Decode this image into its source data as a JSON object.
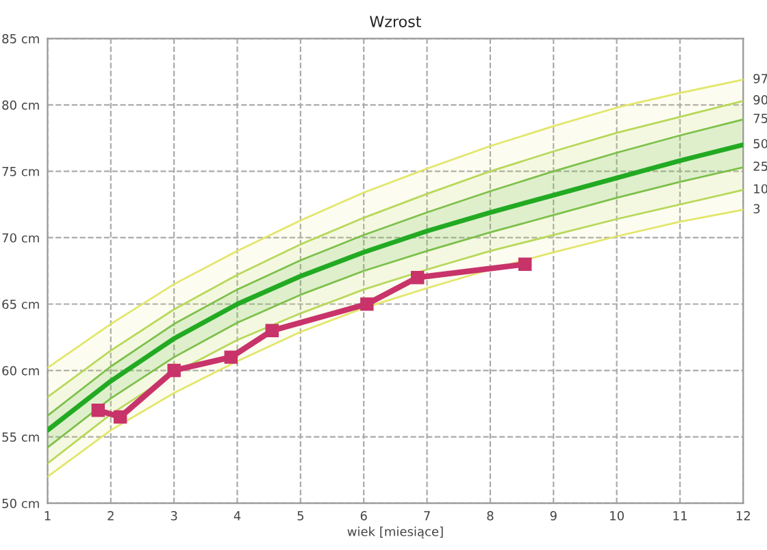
{
  "chart_data": {
    "type": "line",
    "title": "Wzrost",
    "xlabel": "wiek [miesiące]",
    "x": [
      1,
      2,
      3,
      4,
      5,
      6,
      7,
      8,
      9,
      10,
      11,
      12
    ],
    "xlim": [
      1,
      12
    ],
    "xticks": [
      1,
      2,
      3,
      4,
      5,
      6,
      7,
      8,
      9,
      10,
      11,
      12
    ],
    "ylim": [
      50,
      85
    ],
    "yticks": [
      {
        "value": 50,
        "label": "50 cm"
      },
      {
        "value": 55,
        "label": "55 cm"
      },
      {
        "value": 60,
        "label": "60 cm"
      },
      {
        "value": 65,
        "label": "65 cm"
      },
      {
        "value": 70,
        "label": "70 cm"
      },
      {
        "value": 75,
        "label": "75 cm"
      },
      {
        "value": 80,
        "label": "80 cm"
      },
      {
        "value": 85,
        "label": "85 cm"
      }
    ],
    "grid": true,
    "legend": false,
    "marker": "none",
    "line_style": "solid",
    "series": [
      {
        "name": "97",
        "color": "#e2e66a",
        "values": [
          60.2,
          63.5,
          66.5,
          69.0,
          71.3,
          73.4,
          75.2,
          76.9,
          78.4,
          79.8,
          80.9,
          81.9
        ],
        "lower": [
          52.0,
          55.5,
          58.3,
          60.7,
          62.9,
          64.7,
          66.2,
          67.6,
          68.9,
          70.1,
          71.2,
          72.1
        ],
        "upper": [
          60.2,
          63.5,
          66.5,
          69.0,
          71.3,
          73.4,
          75.2,
          76.9,
          78.4,
          79.8,
          80.9,
          81.9
        ]
      },
      {
        "name": "90",
        "color": "#b8d85a",
        "values": [
          58.0,
          61.5,
          64.6,
          67.2,
          69.5,
          71.5,
          73.3,
          75.0,
          76.5,
          77.9,
          79.1,
          80.3
        ],
        "lower": [
          53.0,
          56.7,
          59.8,
          62.3,
          64.3,
          66.1,
          67.6,
          69.0,
          70.2,
          71.4,
          72.5,
          73.6
        ],
        "upper": [
          58.0,
          61.5,
          64.6,
          67.2,
          69.5,
          71.5,
          73.3,
          75.0,
          76.5,
          77.9,
          79.1,
          80.3
        ]
      },
      {
        "name": "75",
        "color": "#7cc04a",
        "values": [
          56.6,
          60.3,
          63.5,
          66.1,
          68.3,
          70.2,
          71.9,
          73.5,
          75.0,
          76.4,
          77.7,
          78.9
        ]
      },
      {
        "name": "50",
        "color": "#22aa22",
        "values": [
          55.5,
          59.2,
          62.4,
          65.0,
          67.1,
          68.9,
          70.5,
          71.9,
          73.2,
          74.5,
          75.8,
          77.0
        ],
        "lower": [
          54.2,
          57.9,
          61.0,
          63.6,
          65.7,
          67.5,
          69.0,
          70.4,
          71.7,
          73.0,
          74.2,
          75.3
        ],
        "upper": [
          56.6,
          60.3,
          63.5,
          66.1,
          68.3,
          70.2,
          71.9,
          73.5,
          75.0,
          76.4,
          77.7,
          78.9
        ]
      },
      {
        "name": "25",
        "color": "#7cc04a",
        "values": [
          54.2,
          57.9,
          61.0,
          63.6,
          65.7,
          67.5,
          69.0,
          70.4,
          71.7,
          73.0,
          74.2,
          75.3
        ]
      },
      {
        "name": "10",
        "color": "#b8d85a",
        "values": [
          53.0,
          56.7,
          59.8,
          62.3,
          64.3,
          66.1,
          67.6,
          69.0,
          70.2,
          71.4,
          72.5,
          73.6
        ]
      },
      {
        "name": "3",
        "color": "#e2e66a",
        "values": [
          52.0,
          55.5,
          58.3,
          60.7,
          62.9,
          64.7,
          66.2,
          67.6,
          68.9,
          70.1,
          71.2,
          72.1
        ]
      },
      {
        "color": "#c8336a",
        "marker": "square",
        "x": [
          1.8,
          2.15,
          3.0,
          3.9,
          4.55,
          6.05,
          6.85,
          8.55
        ],
        "values": [
          57,
          56.5,
          60,
          61,
          63,
          65,
          67,
          68
        ]
      }
    ]
  }
}
